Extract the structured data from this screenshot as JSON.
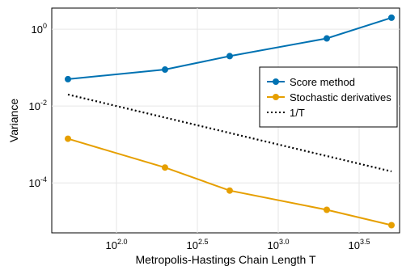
{
  "chart_data": {
    "type": "line",
    "xlabel": "Metropolis-Hastings Chain Length T",
    "ylabel": "Variance",
    "x_scale": "log10",
    "y_scale": "log10",
    "xlim_log10": [
      1.6,
      3.75
    ],
    "ylim_log10": [
      -5.3,
      0.55
    ],
    "x_ticks": [
      {
        "value_log10": 2.0,
        "base": "10",
        "exp": "2.0"
      },
      {
        "value_log10": 2.5,
        "base": "10",
        "exp": "2.5"
      },
      {
        "value_log10": 3.0,
        "base": "10",
        "exp": "3.0"
      },
      {
        "value_log10": 3.5,
        "base": "10",
        "exp": "3.5"
      }
    ],
    "y_ticks": [
      {
        "value_log10": 0,
        "base": "10",
        "exp": "0"
      },
      {
        "value_log10": -2,
        "base": "10",
        "exp": "-2"
      },
      {
        "value_log10": -4,
        "base": "10",
        "exp": "-4"
      }
    ],
    "grid": true,
    "legend_position": "right-middle",
    "series": [
      {
        "name": "Score method",
        "color": "#0072b2",
        "style": "solid",
        "markers": true,
        "x_log10": [
          1.7,
          2.3,
          2.7,
          3.3,
          3.7
        ],
        "y_log10": [
          -1.3,
          -1.05,
          -0.7,
          -0.24,
          0.3
        ]
      },
      {
        "name": "Stochastic derivatives",
        "color": "#e69f00",
        "style": "solid",
        "markers": true,
        "x_log10": [
          1.7,
          2.3,
          2.7,
          3.3,
          3.7
        ],
        "y_log10": [
          -2.85,
          -3.6,
          -4.2,
          -4.7,
          -5.1
        ]
      },
      {
        "name": "1/T",
        "color": "#000000",
        "style": "dotted",
        "markers": false,
        "x_log10": [
          1.7,
          3.7
        ],
        "y_log10": [
          -1.7,
          -3.7
        ]
      }
    ]
  }
}
